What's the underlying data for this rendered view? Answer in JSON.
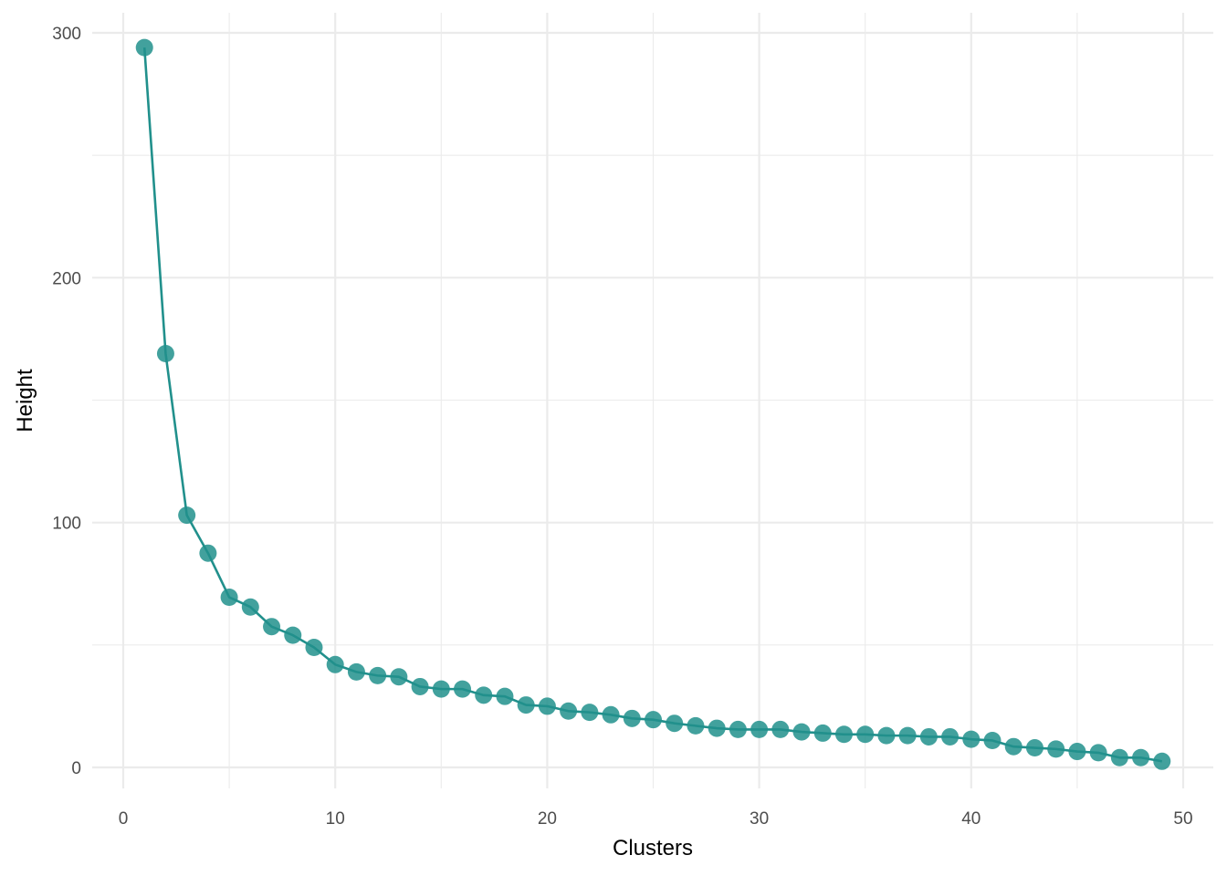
{
  "chart_data": {
    "type": "line",
    "xlabel": "Clusters",
    "ylabel": "Height",
    "xlim": [
      0,
      50
    ],
    "ylim": [
      0,
      300
    ],
    "x_ticks": [
      0,
      10,
      20,
      30,
      40,
      50
    ],
    "y_ticks": [
      0,
      100,
      200,
      300
    ],
    "grid": true,
    "legend": "none",
    "color": "#21908C",
    "series": [
      {
        "x": [
          1,
          2,
          3,
          4,
          5,
          6,
          7,
          8,
          9,
          10,
          11,
          12,
          13,
          14,
          15,
          16,
          17,
          18,
          19,
          20,
          21,
          22,
          23,
          24,
          25,
          26,
          27,
          28,
          29,
          30,
          31,
          32,
          33,
          34,
          35,
          36,
          37,
          38,
          39,
          40,
          41,
          42,
          43,
          44,
          45,
          46,
          47,
          48,
          49
        ],
        "y": [
          294,
          169,
          103,
          87.5,
          69.5,
          65.5,
          57.5,
          54,
          49,
          42,
          39,
          37.5,
          37,
          33,
          32,
          32,
          29.5,
          29,
          25.5,
          25,
          23,
          22.5,
          21.5,
          20,
          19.5,
          18,
          17,
          16,
          15.5,
          15.5,
          15.5,
          14.5,
          14,
          13.5,
          13.5,
          13,
          13,
          12.5,
          12.5,
          11.5,
          11,
          8.5,
          8,
          7.5,
          6.5,
          6,
          4,
          4,
          2.5
        ]
      }
    ]
  }
}
